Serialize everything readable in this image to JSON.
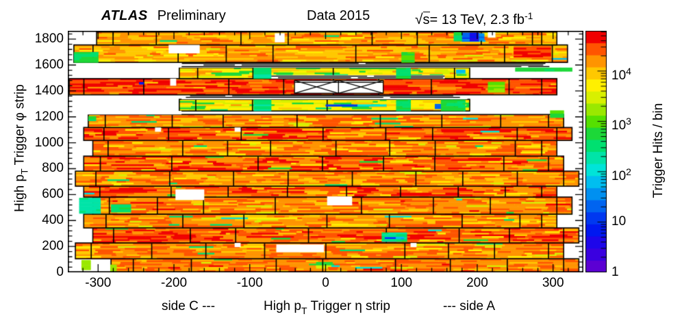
{
  "header": {
    "experiment": "ATLAS",
    "label": "Preliminary",
    "dataset": "Data 2015",
    "sqrt_symbol": "√",
    "sqrt_arg": "s",
    "energy": "= 13 TeV, 2.3 fb",
    "energy_exp": "-1"
  },
  "chart_data": {
    "type": "heatmap",
    "xlabel": {
      "side_c": "side C ---",
      "pre": "High p",
      "sub": "T",
      "post": " Trigger η strip",
      "side_a": "--- side A"
    },
    "ylabel": {
      "pre": "High p",
      "sub": "T",
      "post": " Trigger φ strip"
    },
    "xlim": [
      -340,
      340
    ],
    "ylim": [
      0,
      1864
    ],
    "xticks": [
      -300,
      -200,
      -100,
      0,
      100,
      200,
      300
    ],
    "x_minor_step": 20,
    "yticks": [
      0,
      200,
      400,
      600,
      800,
      1000,
      1200,
      1400,
      1600,
      1800
    ],
    "y_minor_step": 40,
    "grid": false,
    "colorbar": {
      "label": "Trigger Hits / bin",
      "scale": "log",
      "log_min": 0,
      "log_max": 4.8,
      "major_ticks": [
        {
          "label": "1",
          "exp": "",
          "log": 0
        },
        {
          "label": "10",
          "exp": "",
          "log": 1
        },
        {
          "label": "10",
          "exp": "2",
          "log": 2
        },
        {
          "label": "10",
          "exp": "3",
          "log": 3
        },
        {
          "label": "10",
          "exp": "4",
          "log": 4
        }
      ],
      "palette": [
        "#5c00d3",
        "#3a00e0",
        "#1e06ea",
        "#0018f0",
        "#0038f0",
        "#0064f0",
        "#0090f0",
        "#00bef0",
        "#00e4d8",
        "#00e4a8",
        "#00e070",
        "#1cd838",
        "#55e000",
        "#9ae800",
        "#d8f000",
        "#fff000",
        "#ffc800",
        "#ff9400",
        "#ff5400",
        "#f00000"
      ]
    },
    "bands": [
      {
        "name": "barrel-0",
        "y": [
          0,
          105
        ],
        "x": [
          -283,
          334
        ],
        "base": 4.3,
        "seed": 11
      },
      {
        "name": "barrel-1",
        "y": [
          105,
          227
        ],
        "x": [
          -330,
          314
        ],
        "base": 4.25,
        "seed": 12
      },
      {
        "name": "barrel-2",
        "y": [
          227,
          343
        ],
        "x": [
          -307,
          334
        ],
        "base": 4.42,
        "seed": 13
      },
      {
        "name": "barrel-3",
        "y": [
          343,
          449
        ],
        "x": [
          -319,
          305
        ],
        "base": 4.22,
        "seed": 14
      },
      {
        "name": "barrel-4",
        "y": [
          449,
          581
        ],
        "x": [
          -307,
          325
        ],
        "base": 4.3,
        "seed": 15
      },
      {
        "name": "barrel-5",
        "y": [
          581,
          665
        ],
        "x": [
          -319,
          305
        ],
        "base": 4.38,
        "seed": 16
      },
      {
        "name": "barrel-6",
        "y": [
          665,
          781
        ],
        "x": [
          -330,
          334
        ],
        "base": 4.22,
        "seed": 17
      },
      {
        "name": "barrel-7",
        "y": [
          781,
          897
        ],
        "x": [
          -319,
          314
        ],
        "base": 4.42,
        "seed": 18
      },
      {
        "name": "barrel-8",
        "y": [
          897,
          1018
        ],
        "x": [
          -307,
          305
        ],
        "base": 4.26,
        "seed": 19
      },
      {
        "name": "barrel-9",
        "y": [
          1018,
          1118
        ],
        "x": [
          -319,
          325
        ],
        "base": 4.45,
        "seed": 20
      },
      {
        "name": "barrel-10",
        "y": [
          1118,
          1218
        ],
        "x": [
          -313,
          314
        ],
        "base": 4.25,
        "seed": 21
      },
      {
        "name": "endcap-inner-lower",
        "y": [
          1245,
          1335
        ],
        "x": [
          -193,
          190
        ],
        "base": 3.7,
        "style": "yellow",
        "seed": 22
      },
      {
        "name": "strips-lower",
        "y": [
          1335,
          1370
        ],
        "x": [
          -190,
          187
        ],
        "kind": "strips",
        "seed": 23
      },
      {
        "name": "big-wheel-fwd",
        "y": [
          1370,
          1495
        ],
        "x": [
          -338,
          305
        ],
        "base": 4.55,
        "style": "red",
        "seed": 24
      },
      {
        "name": "endcap-inner-upper",
        "y": [
          1495,
          1580
        ],
        "x": [
          -193,
          190
        ],
        "base": 3.7,
        "style": "yellow",
        "seed": 25
      },
      {
        "name": "strips-upper",
        "y": [
          1580,
          1620
        ],
        "x": [
          -194,
          310
        ],
        "kind": "strips",
        "seed": 26
      },
      {
        "name": "outer-2",
        "y": [
          1620,
          1755
        ],
        "x": [
          -332,
          319
        ],
        "base": 4.12,
        "seed": 27
      },
      {
        "name": "outer-1",
        "y": [
          1755,
          1855
        ],
        "x": [
          -302,
          305
        ],
        "base": 4.18,
        "seed": 28
      }
    ],
    "features": [
      {
        "kind": "white",
        "x": [
          -340,
          -190
        ],
        "y": [
          1218,
          1246
        ]
      },
      {
        "kind": "white",
        "x": [
          -207,
          -166
        ],
        "y": [
          1690,
          1755
        ]
      },
      {
        "kind": "white",
        "x": [
          -67,
          -54
        ],
        "y": [
          1775,
          1845
        ]
      },
      {
        "kind": "patch",
        "L": 2.6,
        "x": [
          -332,
          -300
        ],
        "y": [
          1620,
          1700
        ]
      },
      {
        "kind": "patch",
        "L": 2.6,
        "x": [
          169,
          180
        ],
        "y": [
          1785,
          1853
        ]
      },
      {
        "kind": "patch",
        "L": 1.3,
        "x": [
          180,
          190
        ],
        "y": [
          1785,
          1850
        ]
      },
      {
        "kind": "patch",
        "L": 0.6,
        "x": [
          190,
          202
        ],
        "y": [
          1785,
          1850
        ]
      },
      {
        "kind": "patch",
        "L": 1.5,
        "x": [
          202,
          209
        ],
        "y": [
          1790,
          1845
        ]
      },
      {
        "kind": "white",
        "x": [
          214,
          224
        ],
        "y": [
          1812,
          1853
        ]
      },
      {
        "kind": "patch",
        "L": 4.6,
        "x": [
          248,
          297
        ],
        "y": [
          1660,
          1745
        ]
      },
      {
        "kind": "patch",
        "L": 2.9,
        "x": [
          100,
          117
        ],
        "y": [
          1620,
          1700
        ]
      },
      {
        "kind": "strips",
        "x": [
          -76,
          157
        ],
        "y": [
          1495,
          1522
        ],
        "seed": 31
      },
      {
        "kind": "hatch",
        "x": [
          -41,
          76
        ],
        "y": [
          1382,
          1480
        ],
        "mid": 17,
        "hline": 1466
      },
      {
        "kind": "white",
        "x": [
          -205,
          -197
        ],
        "y": [
          1440,
          1495
        ]
      },
      {
        "kind": "patch",
        "L": 0.9,
        "x": [
          -246,
          -240
        ],
        "y": [
          1452,
          1468
        ]
      },
      {
        "kind": "patch",
        "L": 3.1,
        "x": [
          214,
          236
        ],
        "y": [
          1390,
          1470
        ]
      },
      {
        "kind": "patch",
        "L": 1.8,
        "x": [
          172,
          184
        ],
        "y": [
          1535,
          1565
        ]
      },
      {
        "kind": "patch",
        "L": 2.5,
        "x": [
          -95,
          -72
        ],
        "y": [
          1497,
          1578
        ]
      },
      {
        "kind": "patch",
        "L": 2.6,
        "x": [
          93,
          112
        ],
        "y": [
          1497,
          1578
        ]
      },
      {
        "kind": "patch",
        "L": 2.7,
        "x": [
          250,
          325
        ],
        "y": [
          1552,
          1580
        ]
      },
      {
        "kind": "patch",
        "L": 2.5,
        "x": [
          -95,
          -72
        ],
        "y": [
          1247,
          1333
        ]
      },
      {
        "kind": "patch",
        "L": 2.6,
        "x": [
          93,
          112
        ],
        "y": [
          1247,
          1333
        ]
      },
      {
        "kind": "patch",
        "L": 1.1,
        "x": [
          0,
          42
        ],
        "y": [
          1283,
          1296
        ]
      },
      {
        "kind": "patch",
        "L": 1.9,
        "x": [
          42,
          80
        ],
        "y": [
          1283,
          1296
        ]
      },
      {
        "kind": "patch",
        "L": 1.2,
        "x": [
          144,
          152
        ],
        "y": [
          1263,
          1300
        ]
      },
      {
        "kind": "patch",
        "L": 2.6,
        "x": [
          152,
          184
        ],
        "y": [
          1247,
          1333
        ]
      },
      {
        "kind": "patch",
        "L": 2.9,
        "x": [
          296,
          314
        ],
        "y": [
          1195,
          1250
        ]
      },
      {
        "kind": "patch",
        "L": 2.6,
        "x": [
          -313,
          -303
        ],
        "y": [
          1170,
          1205
        ]
      },
      {
        "kind": "white",
        "x": [
          -225,
          -217
        ],
        "y": [
          1085,
          1118
        ]
      },
      {
        "kind": "white",
        "x": [
          -120,
          -112
        ],
        "y": [
          1085,
          1118
        ]
      },
      {
        "kind": "patch",
        "L": 2.4,
        "x": [
          -325,
          -297
        ],
        "y": [
          455,
          575
        ]
      },
      {
        "kind": "patch",
        "L": 2.6,
        "x": [
          -283,
          -257
        ],
        "y": [
          465,
          525
        ]
      },
      {
        "kind": "white",
        "x": [
          -198,
          -160
        ],
        "y": [
          558,
          640
        ]
      },
      {
        "kind": "white",
        "x": [
          2,
          35
        ],
        "y": [
          517,
          586
        ]
      },
      {
        "kind": "patch",
        "L": 2.5,
        "x": [
          74,
          107
        ],
        "y": [
          238,
          308
        ]
      },
      {
        "kind": "patch",
        "L": 1.7,
        "x": [
          78,
          103
        ],
        "y": [
          258,
          275
        ]
      },
      {
        "kind": "patch",
        "L": 0.9,
        "x": [
          78,
          92
        ],
        "y": [
          262,
          270
        ]
      },
      {
        "kind": "white",
        "x": [
          -65,
          -2
        ],
        "y": [
          155,
          215
        ]
      },
      {
        "kind": "white",
        "x": [
          -120,
          -112
        ],
        "y": [
          195,
          227
        ]
      },
      {
        "kind": "white",
        "x": [
          112,
          120
        ],
        "y": [
          195,
          227
        ]
      },
      {
        "kind": "patch",
        "L": 3.2,
        "x": [
          -322,
          -310
        ],
        "y": [
          20,
          95
        ]
      },
      {
        "kind": "patch",
        "L": 3.3,
        "x": [
          -284,
          -276
        ],
        "y": [
          0,
          60
        ]
      }
    ]
  }
}
